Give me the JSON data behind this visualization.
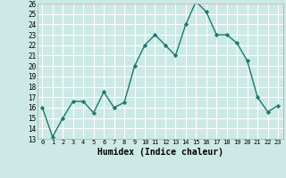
{
  "x": [
    0,
    1,
    2,
    3,
    4,
    5,
    6,
    7,
    8,
    9,
    10,
    11,
    12,
    13,
    14,
    15,
    16,
    17,
    18,
    19,
    20,
    21,
    22,
    23
  ],
  "y": [
    16.0,
    13.2,
    15.0,
    16.6,
    16.6,
    15.5,
    17.5,
    16.0,
    16.5,
    20.0,
    22.0,
    23.0,
    22.0,
    21.0,
    24.0,
    26.2,
    25.2,
    23.0,
    23.0,
    22.2,
    20.5,
    17.0,
    15.6,
    16.2
  ],
  "ylim": [
    13,
    26
  ],
  "yticks": [
    13,
    14,
    15,
    16,
    17,
    18,
    19,
    20,
    21,
    22,
    23,
    24,
    25,
    26
  ],
  "xticks": [
    0,
    1,
    2,
    3,
    4,
    5,
    6,
    7,
    8,
    9,
    10,
    11,
    12,
    13,
    14,
    15,
    16,
    17,
    18,
    19,
    20,
    21,
    22,
    23
  ],
  "xlabel": "Humidex (Indice chaleur)",
  "line_color": "#1a7a6e",
  "marker": "D",
  "marker_size": 2.2,
  "bg_color": "#cce9e5",
  "grid_color": "#ffffff",
  "spine_color": "#aaaaaa"
}
